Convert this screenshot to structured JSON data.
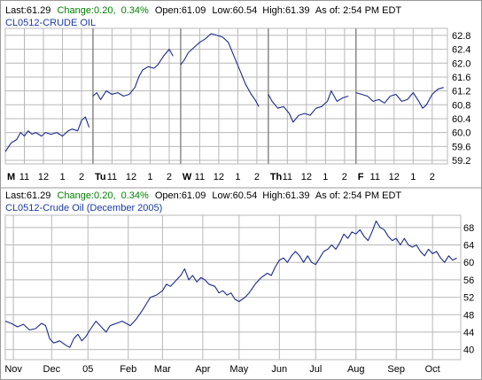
{
  "panels": [
    {
      "quote": {
        "last_label": "Last:",
        "last": "61.29",
        "change_label": "Change:",
        "change": "0.20,",
        "change_pct": "0.34%",
        "open_label": "Open:",
        "open": "61.09",
        "low_label": "Low:",
        "low": "60.54",
        "high_label": "High:",
        "high": "61.39",
        "asof": "As of: 2:54 PM EDT"
      },
      "subtitle": "CL0512-CRUDE OIL"
    },
    {
      "quote": {
        "last_label": "Last:",
        "last": "61.29",
        "change_label": "Change:",
        "change": "0.20,",
        "change_pct": "0.34%",
        "open_label": "Open:",
        "open": "61.09",
        "low_label": "Low:",
        "low": "60.54",
        "high_label": "High:",
        "high": "61.39",
        "asof": "As of: 2:54 PM EDT"
      },
      "subtitle": "CL0512-Crude Oil (December 2005)"
    }
  ],
  "colors": {
    "line": "#1c2a8c",
    "grid": "#b8b8b8",
    "change": "#008000",
    "subtitle": "#1a3aa0"
  },
  "chart_data": [
    {
      "type": "line",
      "title": "CL0512-CRUDE OIL",
      "ylim": [
        59.2,
        62.9
      ],
      "y_ticks": [
        "62.8",
        "62.4",
        "62.0",
        "61.6",
        "61.2",
        "60.8",
        "60.4",
        "60.0",
        "59.6",
        "59.2"
      ],
      "y_tick_values": [
        62.8,
        62.4,
        62.0,
        61.6,
        61.2,
        60.8,
        60.4,
        60.0,
        59.6,
        59.2
      ],
      "x_ticks": [
        {
          "label": "M",
          "bold": true,
          "x": 0.0
        },
        {
          "label": "11",
          "bold": false,
          "x": 1.0
        },
        {
          "label": "12",
          "bold": false,
          "x": 2.0
        },
        {
          "label": "1",
          "bold": false,
          "x": 3.0
        },
        {
          "label": "2",
          "bold": false,
          "x": 4.0
        },
        {
          "label": "Tu",
          "bold": true,
          "x": 4.6
        },
        {
          "label": "11",
          "bold": false,
          "x": 5.6
        },
        {
          "label": "12",
          "bold": false,
          "x": 6.6
        },
        {
          "label": "1",
          "bold": false,
          "x": 7.6
        },
        {
          "label": "2",
          "bold": false,
          "x": 8.6
        },
        {
          "label": "W",
          "bold": true,
          "x": 9.2
        },
        {
          "label": "11",
          "bold": false,
          "x": 10.2
        },
        {
          "label": "12",
          "bold": false,
          "x": 11.2
        },
        {
          "label": "1",
          "bold": false,
          "x": 12.2
        },
        {
          "label": "2",
          "bold": false,
          "x": 13.2
        },
        {
          "label": "Th",
          "bold": true,
          "x": 13.8
        },
        {
          "label": "11",
          "bold": false,
          "x": 14.8
        },
        {
          "label": "12",
          "bold": false,
          "x": 15.8
        },
        {
          "label": "1",
          "bold": false,
          "x": 16.8
        },
        {
          "label": "2",
          "bold": false,
          "x": 17.8
        },
        {
          "label": "F",
          "bold": true,
          "x": 18.4
        },
        {
          "label": "11",
          "bold": false,
          "x": 19.4
        },
        {
          "label": "12",
          "bold": false,
          "x": 20.4
        },
        {
          "label": "1",
          "bold": false,
          "x": 21.4
        },
        {
          "label": "2",
          "bold": false,
          "x": 22.4
        }
      ],
      "xlim": [
        0,
        23.2
      ],
      "segments": [
        [
          [
            0.0,
            59.45
          ],
          [
            0.3,
            59.7
          ],
          [
            0.6,
            59.8
          ],
          [
            0.8,
            60.0
          ],
          [
            1.0,
            59.9
          ],
          [
            1.2,
            60.05
          ],
          [
            1.4,
            59.95
          ],
          [
            1.6,
            60.0
          ],
          [
            1.9,
            59.9
          ],
          [
            2.1,
            60.0
          ],
          [
            2.4,
            59.95
          ],
          [
            2.7,
            60.0
          ],
          [
            3.0,
            59.9
          ],
          [
            3.3,
            60.05
          ],
          [
            3.5,
            60.1
          ],
          [
            3.8,
            60.05
          ],
          [
            4.0,
            60.35
          ],
          [
            4.2,
            60.45
          ],
          [
            4.4,
            60.15
          ]
        ],
        [
          [
            4.6,
            61.05
          ],
          [
            4.8,
            61.15
          ],
          [
            5.0,
            60.95
          ],
          [
            5.3,
            61.2
          ],
          [
            5.6,
            61.1
          ],
          [
            5.9,
            61.15
          ],
          [
            6.2,
            61.05
          ],
          [
            6.5,
            61.1
          ],
          [
            6.8,
            61.3
          ],
          [
            7.0,
            61.6
          ],
          [
            7.2,
            61.8
          ],
          [
            7.5,
            61.9
          ],
          [
            7.8,
            61.85
          ],
          [
            8.0,
            61.95
          ],
          [
            8.3,
            62.2
          ],
          [
            8.6,
            62.4
          ],
          [
            8.8,
            62.2
          ]
        ],
        [
          [
            9.2,
            61.95
          ],
          [
            9.4,
            62.1
          ],
          [
            9.6,
            62.3
          ],
          [
            9.9,
            62.45
          ],
          [
            10.2,
            62.6
          ],
          [
            10.5,
            62.7
          ],
          [
            10.8,
            62.85
          ],
          [
            11.1,
            62.8
          ],
          [
            11.4,
            62.75
          ],
          [
            11.7,
            62.6
          ],
          [
            12.0,
            62.2
          ],
          [
            12.3,
            61.8
          ],
          [
            12.6,
            61.4
          ],
          [
            12.9,
            61.1
          ],
          [
            13.1,
            60.95
          ],
          [
            13.3,
            60.75
          ]
        ],
        [
          [
            13.8,
            61.1
          ],
          [
            14.0,
            60.9
          ],
          [
            14.3,
            60.7
          ],
          [
            14.6,
            60.75
          ],
          [
            14.9,
            60.55
          ],
          [
            15.1,
            60.3
          ],
          [
            15.4,
            60.5
          ],
          [
            15.7,
            60.55
          ],
          [
            16.0,
            60.5
          ],
          [
            16.3,
            60.7
          ],
          [
            16.6,
            60.75
          ],
          [
            16.9,
            60.9
          ],
          [
            17.1,
            61.2
          ],
          [
            17.4,
            60.9
          ],
          [
            17.7,
            61.0
          ],
          [
            18.0,
            61.05
          ]
        ],
        [
          [
            18.4,
            61.15
          ],
          [
            18.7,
            61.1
          ],
          [
            19.0,
            61.05
          ],
          [
            19.3,
            60.9
          ],
          [
            19.6,
            60.95
          ],
          [
            19.9,
            60.85
          ],
          [
            20.2,
            61.05
          ],
          [
            20.5,
            61.1
          ],
          [
            20.8,
            60.9
          ],
          [
            21.1,
            60.95
          ],
          [
            21.4,
            61.15
          ],
          [
            21.7,
            60.9
          ],
          [
            21.9,
            60.7
          ],
          [
            22.1,
            60.8
          ],
          [
            22.4,
            61.1
          ],
          [
            22.7,
            61.25
          ],
          [
            23.0,
            61.3
          ]
        ]
      ],
      "vertical_markers": [
        4.6,
        9.2,
        13.8,
        18.4
      ]
    },
    {
      "type": "line",
      "title": "CL0512-Crude Oil (December 2005)",
      "ylim": [
        38.5,
        70
      ],
      "y_ticks": [
        "68",
        "64",
        "60",
        "56",
        "52",
        "48",
        "44",
        "40"
      ],
      "y_tick_values": [
        68,
        64,
        60,
        56,
        52,
        48,
        44,
        40
      ],
      "x_ticks": [
        {
          "label": "Nov",
          "x": 0.2
        },
        {
          "label": "Dec",
          "x": 1.15
        },
        {
          "label": "05",
          "x": 2.05
        },
        {
          "label": "Feb",
          "x": 3.05
        },
        {
          "label": "Mar",
          "x": 3.9
        },
        {
          "label": "Apr",
          "x": 4.9
        },
        {
          "label": "May",
          "x": 5.8
        },
        {
          "label": "Jun",
          "x": 6.8
        },
        {
          "label": "Jul",
          "x": 7.7
        },
        {
          "label": "Aug",
          "x": 8.7
        },
        {
          "label": "Sep",
          "x": 9.7
        },
        {
          "label": "Oct",
          "x": 10.6
        }
      ],
      "xlim": [
        0,
        11.3
      ],
      "series": [
        {
          "values": [
            [
              0.0,
              46.5
            ],
            [
              0.15,
              46.0
            ],
            [
              0.3,
              45.2
            ],
            [
              0.45,
              45.8
            ],
            [
              0.6,
              44.5
            ],
            [
              0.75,
              44.8
            ],
            [
              0.9,
              46.0
            ],
            [
              1.0,
              45.5
            ],
            [
              1.1,
              42.5
            ],
            [
              1.2,
              41.5
            ],
            [
              1.35,
              42.0
            ],
            [
              1.5,
              41.0
            ],
            [
              1.6,
              40.5
            ],
            [
              1.7,
              42.5
            ],
            [
              1.8,
              43.5
            ],
            [
              1.9,
              42.0
            ],
            [
              2.0,
              43.0
            ],
            [
              2.1,
              44.5
            ],
            [
              2.25,
              46.5
            ],
            [
              2.4,
              45.0
            ],
            [
              2.5,
              44.0
            ],
            [
              2.6,
              45.5
            ],
            [
              2.75,
              46.0
            ],
            [
              2.9,
              46.5
            ],
            [
              3.0,
              46.0
            ],
            [
              3.1,
              45.5
            ],
            [
              3.25,
              47.0
            ],
            [
              3.4,
              49.0
            ],
            [
              3.5,
              50.5
            ],
            [
              3.6,
              52.0
            ],
            [
              3.75,
              52.5
            ],
            [
              3.9,
              53.5
            ],
            [
              4.0,
              55.0
            ],
            [
              4.1,
              54.5
            ],
            [
              4.25,
              56.0
            ],
            [
              4.35,
              57.0
            ],
            [
              4.45,
              58.5
            ],
            [
              4.55,
              56.0
            ],
            [
              4.65,
              57.0
            ],
            [
              4.75,
              55.5
            ],
            [
              4.85,
              56.5
            ],
            [
              4.95,
              56.0
            ],
            [
              5.05,
              55.0
            ],
            [
              5.2,
              54.5
            ],
            [
              5.3,
              53.0
            ],
            [
              5.4,
              53.5
            ],
            [
              5.5,
              52.5
            ],
            [
              5.6,
              53.0
            ],
            [
              5.7,
              51.5
            ],
            [
              5.8,
              51.0
            ],
            [
              5.95,
              52.0
            ],
            [
              6.05,
              53.0
            ],
            [
              6.2,
              55.0
            ],
            [
              6.35,
              56.5
            ],
            [
              6.5,
              57.5
            ],
            [
              6.6,
              57.0
            ],
            [
              6.7,
              59.0
            ],
            [
              6.8,
              60.5
            ],
            [
              6.9,
              61.0
            ],
            [
              7.0,
              60.0
            ],
            [
              7.1,
              61.5
            ],
            [
              7.2,
              62.5
            ],
            [
              7.3,
              61.5
            ],
            [
              7.4,
              60.0
            ],
            [
              7.5,
              61.5
            ],
            [
              7.6,
              60.0
            ],
            [
              7.7,
              59.5
            ],
            [
              7.8,
              61.0
            ],
            [
              7.9,
              62.5
            ],
            [
              8.0,
              63.0
            ],
            [
              8.1,
              64.0
            ],
            [
              8.2,
              63.0
            ],
            [
              8.3,
              64.5
            ],
            [
              8.4,
              66.5
            ],
            [
              8.5,
              65.5
            ],
            [
              8.6,
              67.0
            ],
            [
              8.7,
              66.5
            ],
            [
              8.8,
              67.5
            ],
            [
              8.9,
              66.0
            ],
            [
              9.0,
              65.0
            ],
            [
              9.1,
              67.0
            ],
            [
              9.2,
              69.5
            ],
            [
              9.3,
              68.0
            ],
            [
              9.4,
              67.5
            ],
            [
              9.5,
              66.0
            ],
            [
              9.6,
              65.0
            ],
            [
              9.7,
              65.5
            ],
            [
              9.8,
              64.0
            ],
            [
              9.9,
              65.5
            ],
            [
              10.0,
              64.0
            ],
            [
              10.1,
              63.5
            ],
            [
              10.2,
              64.0
            ],
            [
              10.3,
              62.5
            ],
            [
              10.4,
              61.5
            ],
            [
              10.5,
              63.0
            ],
            [
              10.6,
              62.0
            ],
            [
              10.7,
              62.5
            ],
            [
              10.8,
              61.0
            ],
            [
              10.9,
              60.0
            ],
            [
              11.0,
              61.5
            ],
            [
              11.1,
              60.5
            ],
            [
              11.2,
              61.0
            ]
          ]
        }
      ]
    }
  ]
}
